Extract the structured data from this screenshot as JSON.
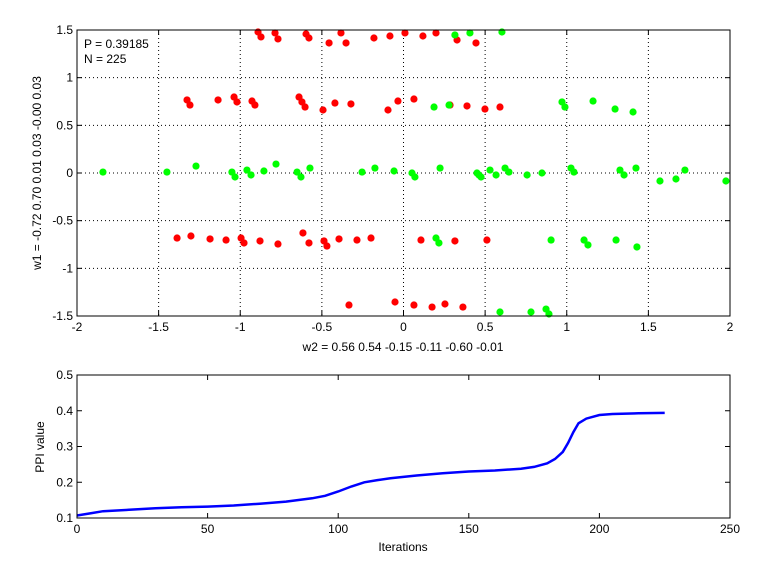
{
  "chart_data": [
    {
      "type": "scatter",
      "xlabel": "w2 = 0.56  0.54  -0.15  -0.11  -0.60  -0.01",
      "ylabel": "w1 = -0.72  0.70  0.01  0.03  -0.00  0.03",
      "xlim": [
        -2,
        2
      ],
      "ylim": [
        -1.5,
        1.5
      ],
      "xticks": [
        "-2",
        "-1.5",
        "-1",
        "-0.5",
        "0",
        "0.5",
        "1",
        "1.5",
        "2"
      ],
      "yticks": [
        "-1.5",
        "-1",
        "-0.5",
        "0",
        "0.5",
        "1",
        "1.5"
      ],
      "grid": true,
      "annotations": [
        "P = 0.39185",
        "N = 225"
      ],
      "colors": {
        "red": "#ff0000",
        "green": "#00ff00"
      },
      "series": [
        {
          "color": "#ff0000",
          "points": [
            [
              -0.891,
              1.479
            ],
            [
              -0.873,
              1.427
            ],
            [
              -0.787,
              1.469
            ],
            [
              -0.769,
              1.406
            ],
            [
              -0.597,
              1.458
            ],
            [
              -0.579,
              1.416
            ],
            [
              -0.456,
              1.364
            ],
            [
              -0.383,
              1.469
            ],
            [
              -0.352,
              1.364
            ],
            [
              -0.181,
              1.416
            ],
            [
              -0.083,
              1.437
            ],
            [
              0.009,
              1.469
            ],
            [
              0.119,
              1.437
            ],
            [
              0.199,
              1.469
            ],
            [
              0.328,
              1.395
            ],
            [
              0.444,
              1.364
            ],
            [
              -1.326,
              0.766
            ],
            [
              -1.308,
              0.713
            ],
            [
              -1.136,
              0.766
            ],
            [
              -1.038,
              0.797
            ],
            [
              -1.02,
              0.745
            ],
            [
              -0.928,
              0.755
            ],
            [
              -0.91,
              0.713
            ],
            [
              -0.64,
              0.797
            ],
            [
              -0.622,
              0.745
            ],
            [
              -0.603,
              0.692
            ],
            [
              -0.493,
              0.661
            ],
            [
              -0.42,
              0.734
            ],
            [
              -0.322,
              0.724
            ],
            [
              -0.095,
              0.661
            ],
            [
              -0.034,
              0.755
            ],
            [
              0.064,
              0.776
            ],
            [
              0.285,
              0.713
            ],
            [
              0.389,
              0.703
            ],
            [
              0.499,
              0.671
            ],
            [
              0.591,
              0.692
            ],
            [
              -1.387,
              -0.682
            ],
            [
              -1.302,
              -0.661
            ],
            [
              -1.185,
              -0.692
            ],
            [
              -1.087,
              -0.703
            ],
            [
              -0.995,
              -0.682
            ],
            [
              -0.977,
              -0.734
            ],
            [
              -0.879,
              -0.713
            ],
            [
              -0.769,
              -0.745
            ],
            [
              -0.616,
              -0.629
            ],
            [
              -0.579,
              -0.734
            ],
            [
              -0.487,
              -0.713
            ],
            [
              -0.469,
              -0.766
            ],
            [
              -0.395,
              -0.692
            ],
            [
              -0.285,
              -0.703
            ],
            [
              -0.199,
              -0.682
            ],
            [
              0.107,
              -0.703
            ],
            [
              0.315,
              -0.713
            ],
            [
              0.511,
              -0.703
            ],
            [
              -0.334,
              -1.385
            ],
            [
              -0.052,
              -1.353
            ],
            [
              0.064,
              -1.385
            ],
            [
              0.175,
              -1.406
            ],
            [
              0.254,
              -1.374
            ],
            [
              0.364,
              -1.406
            ]
          ]
        },
        {
          "color": "#00ff00",
          "points": [
            [
              0.315,
              1.448
            ],
            [
              0.407,
              1.469
            ],
            [
              0.603,
              1.479
            ],
            [
              0.187,
              0.692
            ],
            [
              0.279,
              0.713
            ],
            [
              0.971,
              0.745
            ],
            [
              0.989,
              0.692
            ],
            [
              1.161,
              0.755
            ],
            [
              1.296,
              0.671
            ],
            [
              1.406,
              0.64
            ],
            [
              -1.841,
              0.01
            ],
            [
              -1.449,
              0.01
            ],
            [
              -1.271,
              0.073
            ],
            [
              -1.051,
              0.01
            ],
            [
              -1.032,
              -0.042
            ],
            [
              -0.959,
              0.031
            ],
            [
              -0.934,
              -0.021
            ],
            [
              -0.855,
              0.021
            ],
            [
              -0.781,
              0.094
            ],
            [
              -0.652,
              0.01
            ],
            [
              -0.628,
              -0.042
            ],
            [
              -0.573,
              0.052
            ],
            [
              -0.254,
              0.01
            ],
            [
              -0.175,
              0.052
            ],
            [
              -0.058,
              0.021
            ],
            [
              0.052,
              0.0
            ],
            [
              0.07,
              -0.042
            ],
            [
              0.224,
              0.052
            ],
            [
              0.45,
              0.0
            ],
            [
              0.462,
              -0.021
            ],
            [
              0.475,
              -0.042
            ],
            [
              0.53,
              0.031
            ],
            [
              0.567,
              -0.021
            ],
            [
              0.622,
              0.052
            ],
            [
              0.646,
              0.01
            ],
            [
              0.757,
              -0.021
            ],
            [
              0.848,
              0.0
            ],
            [
              1.026,
              0.052
            ],
            [
              1.044,
              0.01
            ],
            [
              1.326,
              0.031
            ],
            [
              1.351,
              -0.021
            ],
            [
              1.424,
              0.052
            ],
            [
              1.571,
              -0.084
            ],
            [
              1.669,
              -0.063
            ],
            [
              1.724,
              0.031
            ],
            [
              1.975,
              -0.084
            ],
            [
              0.199,
              -0.682
            ],
            [
              0.217,
              -0.734
            ],
            [
              0.904,
              -0.703
            ],
            [
              1.106,
              -0.703
            ],
            [
              1.13,
              -0.755
            ],
            [
              1.302,
              -0.703
            ],
            [
              1.43,
              -0.776
            ],
            [
              0.591,
              -1.458
            ],
            [
              0.781,
              -1.458
            ],
            [
              0.873,
              -1.427
            ],
            [
              0.891,
              -1.479
            ]
          ]
        }
      ]
    },
    {
      "type": "line",
      "xlabel": "Iterations",
      "ylabel": "PPI value",
      "xlim": [
        0,
        250
      ],
      "ylim": [
        0.1,
        0.5
      ],
      "xticks": [
        "0",
        "50",
        "100",
        "150",
        "200",
        "250"
      ],
      "yticks": [
        "0.1",
        "0.2",
        "0.3",
        "0.4",
        "0.5"
      ],
      "grid": false,
      "series": [
        {
          "color": "#0000ff",
          "x": [
            0,
            5,
            10,
            20,
            30,
            40,
            50,
            60,
            70,
            80,
            90,
            95,
            100,
            105,
            110,
            115,
            120,
            130,
            140,
            150,
            160,
            170,
            175,
            180,
            183,
            186,
            188,
            190,
            192,
            195,
            200,
            205,
            215,
            225
          ],
          "y": [
            0.107,
            0.113,
            0.119,
            0.123,
            0.127,
            0.13,
            0.132,
            0.135,
            0.14,
            0.146,
            0.155,
            0.162,
            0.174,
            0.188,
            0.2,
            0.206,
            0.211,
            0.219,
            0.225,
            0.23,
            0.233,
            0.238,
            0.243,
            0.253,
            0.265,
            0.285,
            0.31,
            0.34,
            0.365,
            0.378,
            0.388,
            0.391,
            0.393,
            0.394
          ]
        }
      ]
    }
  ]
}
